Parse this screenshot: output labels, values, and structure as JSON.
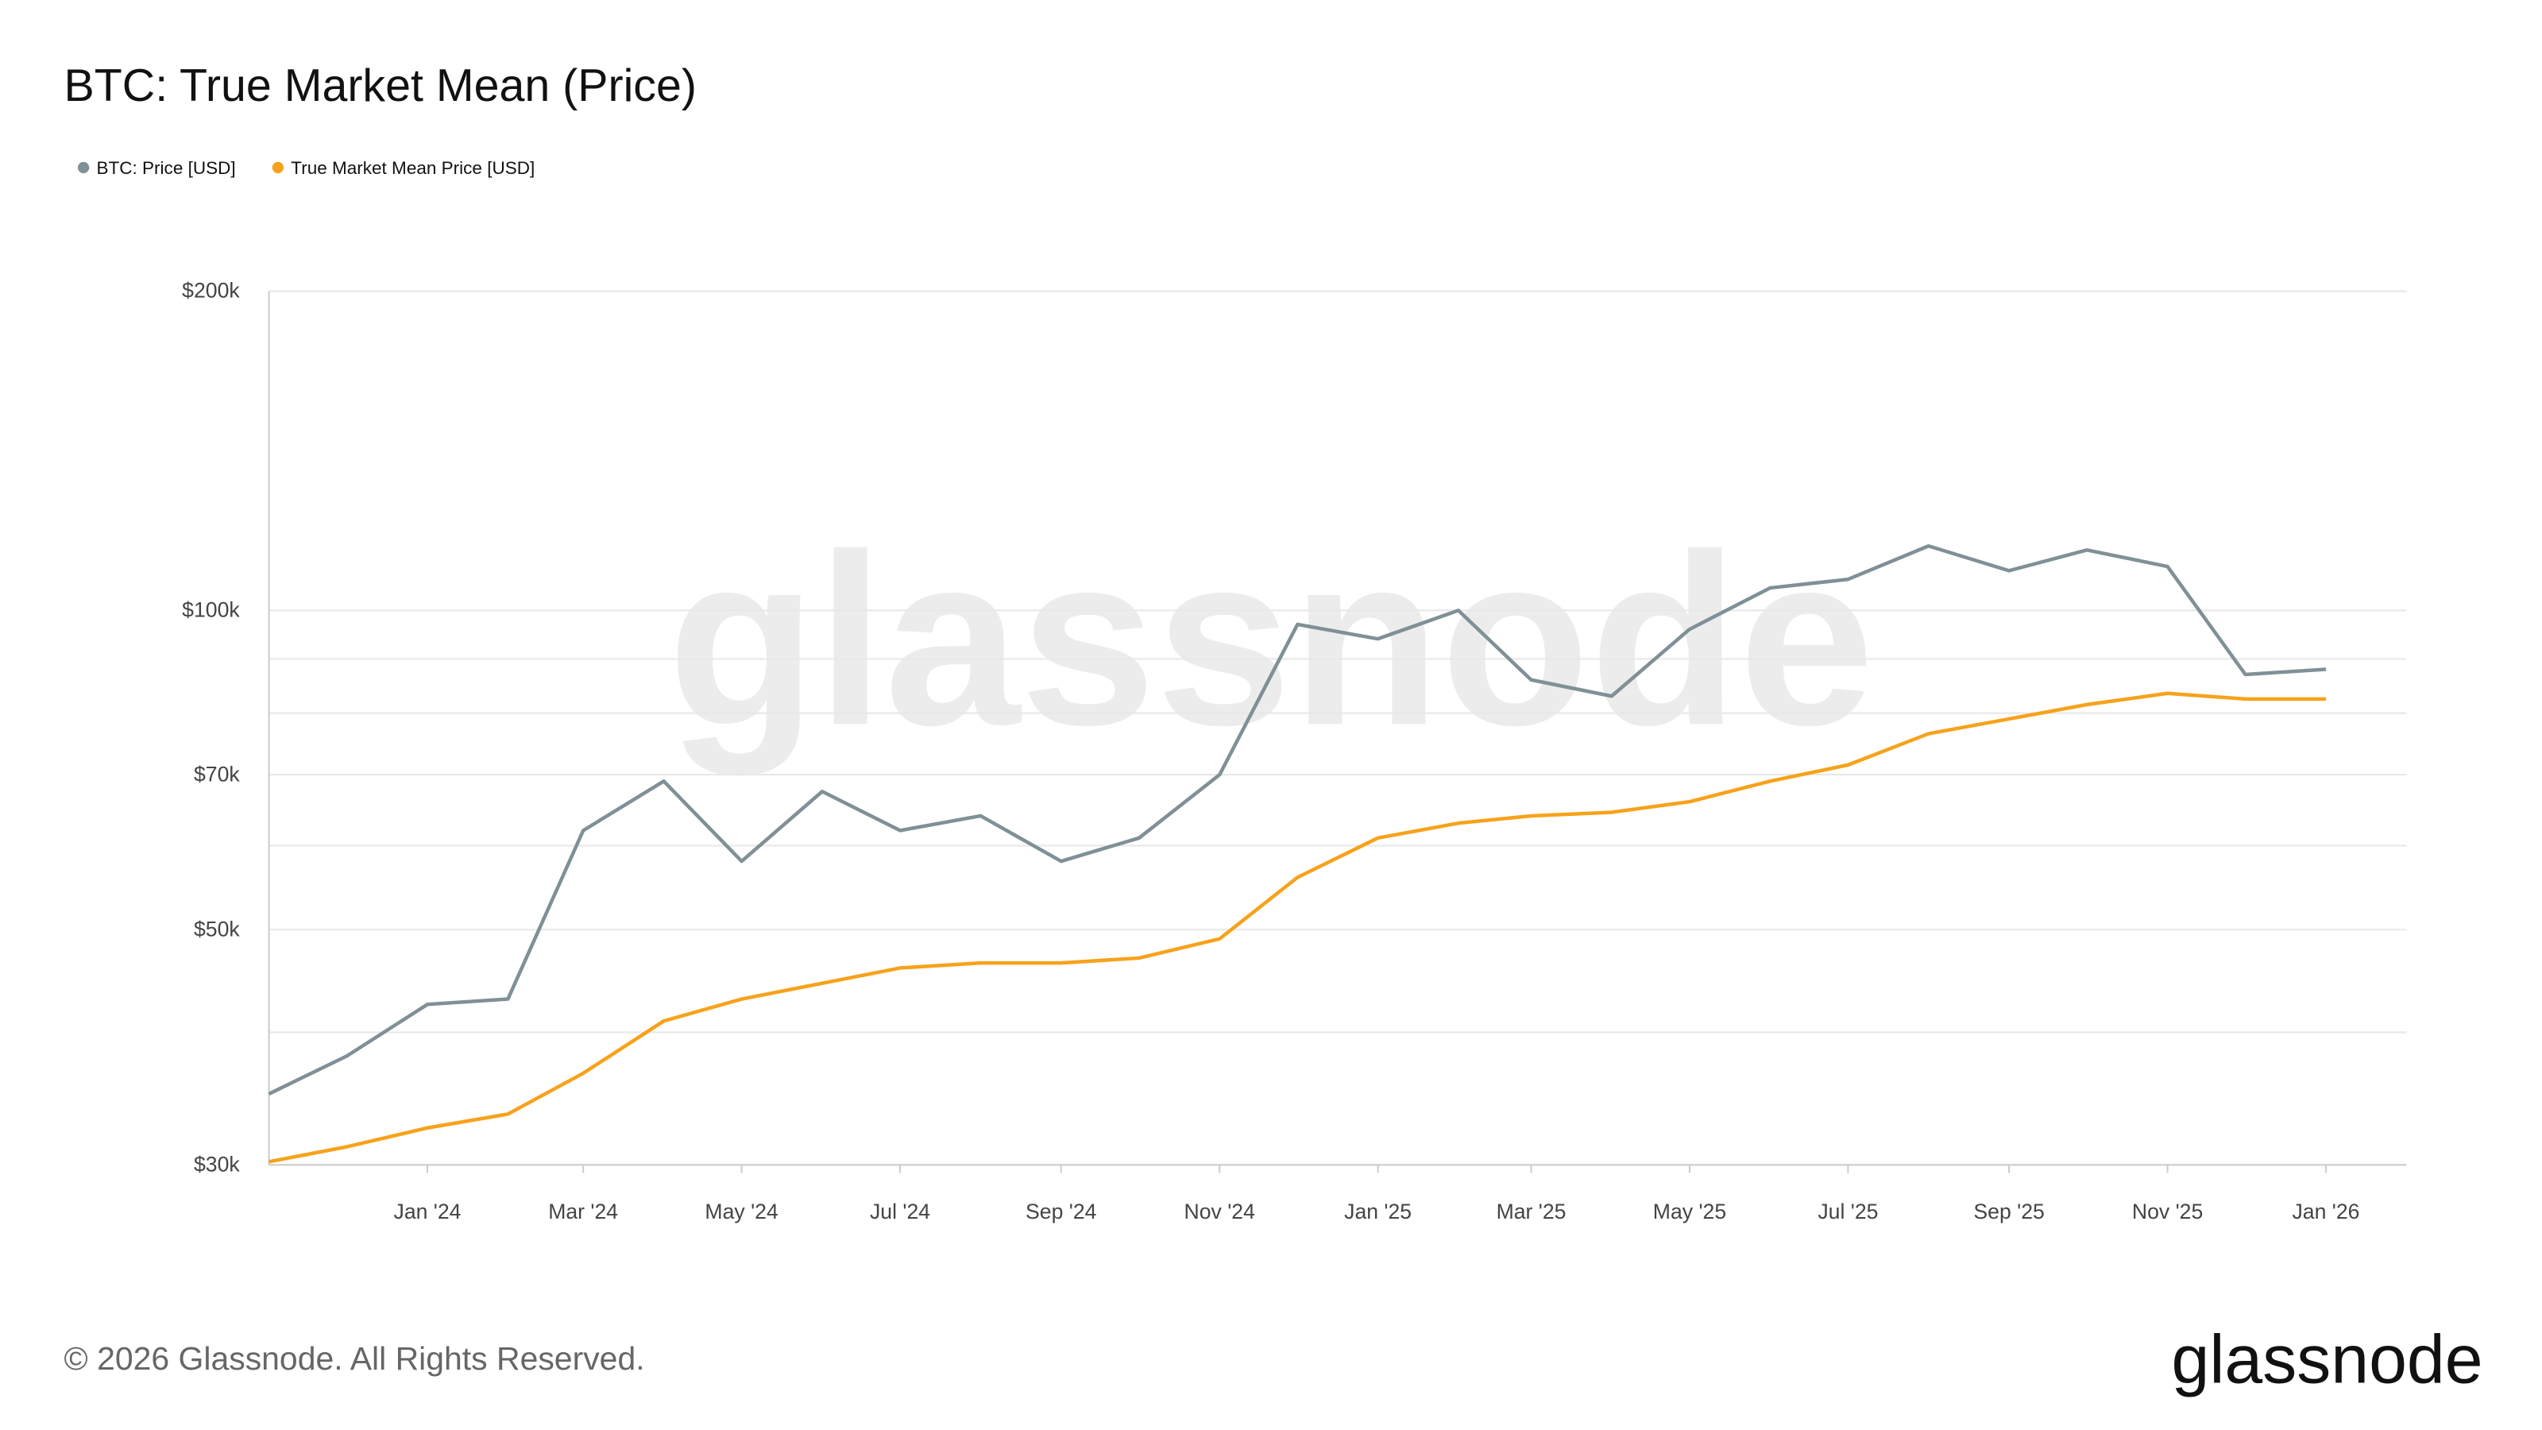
{
  "chart_data": {
    "type": "line",
    "title": "BTC: True Market Mean (Price)",
    "footer": "© 2026 Glassnode. All Rights Reserved.",
    "brand": "glassnode",
    "log_scale": true,
    "grid": true,
    "legend": "top-left",
    "x": [
      "2023-11",
      "2023-12",
      "2024-01",
      "2024-02",
      "2024-03",
      "2024-04",
      "2024-05",
      "2024-06",
      "2024-07",
      "2024-08",
      "2024-09",
      "2024-10",
      "2024-11",
      "2024-12",
      "2025-01",
      "2025-02",
      "2025-03",
      "2025-04",
      "2025-05",
      "2025-06",
      "2025-07",
      "2025-08",
      "2025-09",
      "2025-10",
      "2025-11",
      "2025-12",
      "2026-01"
    ],
    "xlim": [
      "2023-11",
      "2026-02"
    ],
    "xticks": [
      {
        "value": "2024-01",
        "label": "Jan '24"
      },
      {
        "value": "2024-03",
        "label": "Mar '24"
      },
      {
        "value": "2024-05",
        "label": "May '24"
      },
      {
        "value": "2024-07",
        "label": "Jul '24"
      },
      {
        "value": "2024-09",
        "label": "Sep '24"
      },
      {
        "value": "2024-11",
        "label": "Nov '24"
      },
      {
        "value": "2025-01",
        "label": "Jan '25"
      },
      {
        "value": "2025-03",
        "label": "Mar '25"
      },
      {
        "value": "2025-05",
        "label": "May '25"
      },
      {
        "value": "2025-07",
        "label": "Jul '25"
      },
      {
        "value": "2025-09",
        "label": "Sep '25"
      },
      {
        "value": "2025-11",
        "label": "Nov '25"
      },
      {
        "value": "2026-01",
        "label": "Jan '26"
      }
    ],
    "ylim": [
      30000,
      200000
    ],
    "yticks": [
      {
        "value": 30000,
        "label": "$30k"
      },
      {
        "value": 50000,
        "label": "$50k"
      },
      {
        "value": 70000,
        "label": "$70k"
      },
      {
        "value": 100000,
        "label": "$100k"
      },
      {
        "value": 200000,
        "label": "$200k"
      }
    ],
    "minor_gridlines": [
      40000,
      60000,
      80000,
      90000
    ],
    "series": [
      {
        "name": "BTC: Price [USD]",
        "color": "#7f9096",
        "values": [
          35000,
          38000,
          42500,
          43000,
          62000,
          69000,
          58000,
          67500,
          62000,
          64000,
          58000,
          61000,
          70000,
          97000,
          94000,
          100000,
          86000,
          83000,
          96000,
          105000,
          107000,
          115000,
          109000,
          114000,
          110000,
          87000,
          88000
        ]
      },
      {
        "name": "True Market Mean Price [USD]",
        "color": "#f7a21b",
        "values": [
          30200,
          31200,
          32500,
          33500,
          36600,
          41000,
          43000,
          44500,
          46000,
          46500,
          46500,
          47000,
          49000,
          56000,
          61000,
          63000,
          64000,
          64500,
          66000,
          69000,
          71500,
          76500,
          79000,
          81500,
          83500,
          82500,
          82500
        ]
      }
    ]
  }
}
